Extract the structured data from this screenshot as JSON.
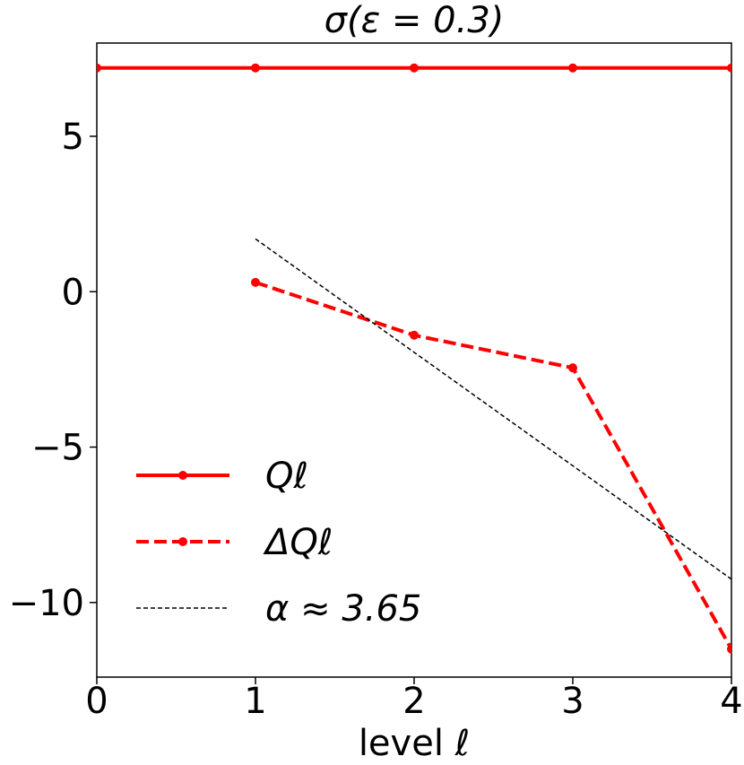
{
  "chart_data": {
    "type": "line",
    "title": "σ(ε = 0.3)",
    "xlabel": "level ℓ",
    "ylabel": "",
    "xlim": [
      0,
      4
    ],
    "ylim": [
      -12.4,
      8.0
    ],
    "xticks": [
      0,
      1,
      2,
      3,
      4
    ],
    "xtick_labels": [
      "0",
      "1",
      "2",
      "3",
      "4"
    ],
    "yticks": [
      5,
      0,
      -5,
      -10
    ],
    "ytick_labels": [
      "5",
      "0",
      "−5",
      "−10"
    ],
    "grid": false,
    "legend_position": "lower-left",
    "series": [
      {
        "name": "Q_ℓ",
        "label_text": "Qℓ",
        "style": "solid",
        "marker": "dot",
        "color": "#ff0000",
        "x": [
          0,
          1,
          2,
          3,
          4
        ],
        "y": [
          7.2,
          7.2,
          7.2,
          7.2,
          7.2
        ]
      },
      {
        "name": "ΔQ_ℓ",
        "label_text": "ΔQℓ",
        "style": "dashed",
        "marker": "dot",
        "color": "#ff0000",
        "x": [
          1,
          2,
          3,
          4
        ],
        "y": [
          0.3,
          -1.4,
          -2.45,
          -11.5
        ]
      },
      {
        "name": "α ≈ 3.65",
        "label_text": "α ≈ 3.65",
        "style": "dotted-dashed-fine",
        "marker": "none",
        "color": "#000000",
        "x": [
          1,
          4
        ],
        "y": [
          1.7,
          -9.25
        ]
      }
    ]
  }
}
